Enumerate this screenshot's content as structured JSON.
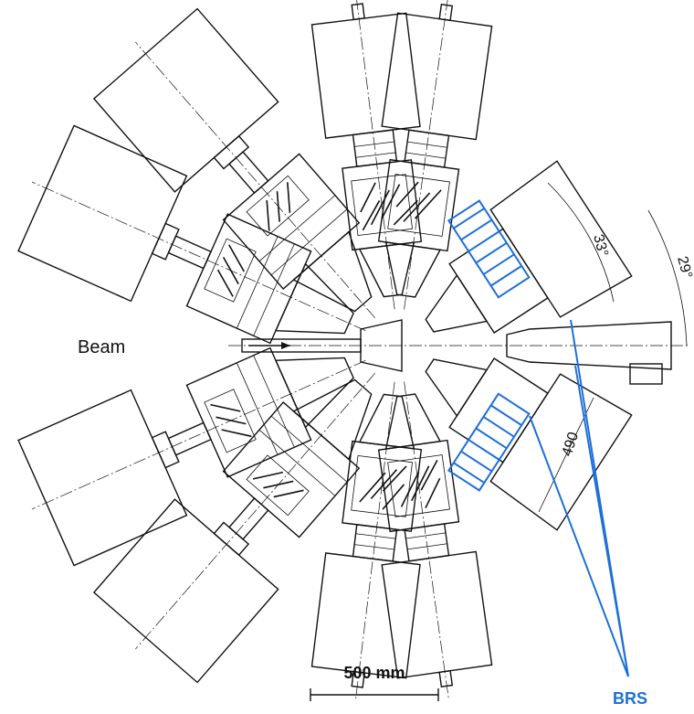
{
  "labels": {
    "beam": "Beam",
    "angle_33": "33°",
    "angle_29": "29°",
    "distance": "490",
    "scale_bar": "500 mm",
    "brs": "BRS"
  }
}
